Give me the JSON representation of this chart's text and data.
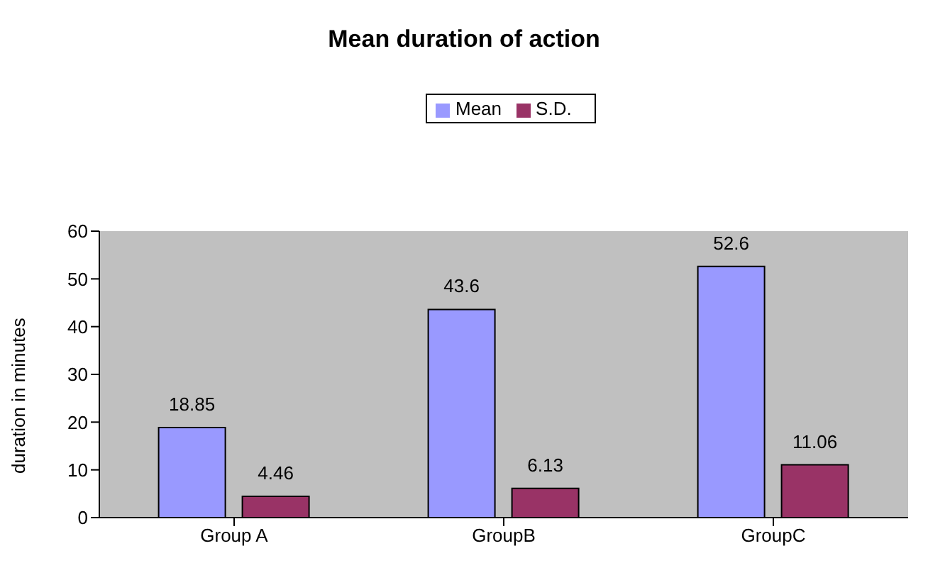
{
  "chart_data": {
    "type": "bar",
    "title": "Mean duration of action",
    "ylabel": "duration in minutes",
    "categories": [
      "Group A",
      "GroupB",
      "GroupC"
    ],
    "series": [
      {
        "name": "Mean",
        "color": "#9999ff",
        "values": [
          18.85,
          43.6,
          52.6
        ]
      },
      {
        "name": "S.D.",
        "color": "#993366",
        "values": [
          4.46,
          6.13,
          11.06
        ]
      }
    ],
    "ylim": [
      0,
      60
    ],
    "yticks": [
      0,
      10,
      20,
      30,
      40,
      50,
      60
    ],
    "grid": false,
    "legend": "top",
    "data_labels": true
  }
}
